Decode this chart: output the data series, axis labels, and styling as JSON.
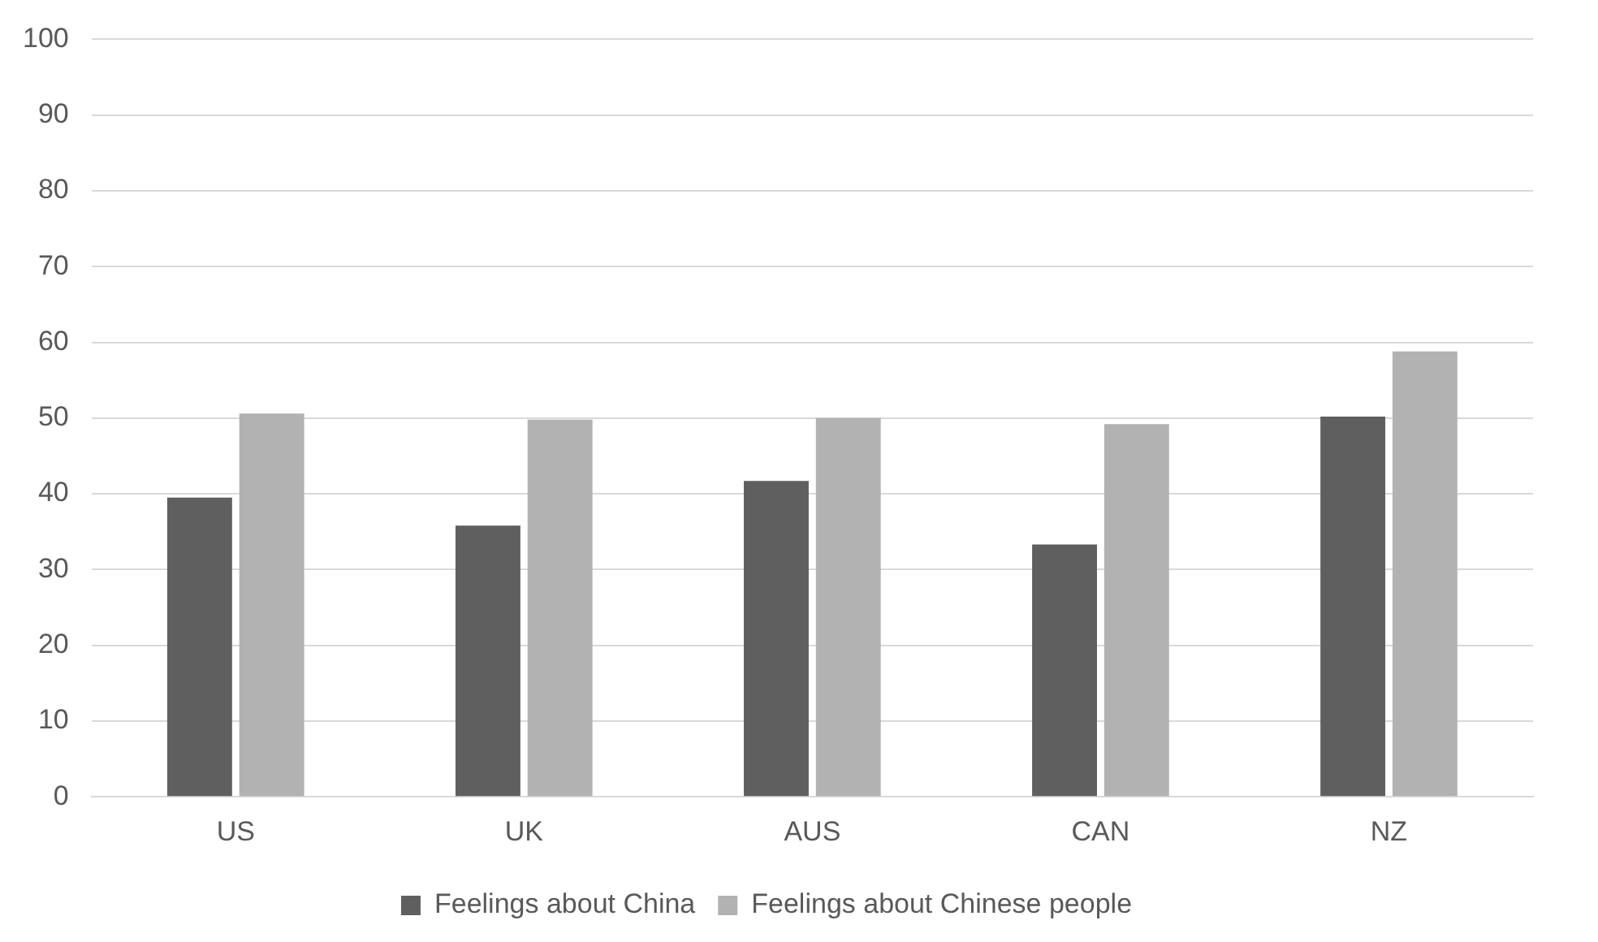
{
  "chart_data": {
    "type": "bar",
    "categories": [
      "US",
      "UK",
      "AUS",
      "CAN",
      "NZ"
    ],
    "series": [
      {
        "name": "Feelings about China",
        "color": "#5f5f5f",
        "values": [
          39.5,
          35.8,
          41.7,
          33.3,
          50.2
        ]
      },
      {
        "name": "Feelings about Chinese people",
        "color": "#b2b2b2",
        "values": [
          50.6,
          49.8,
          50.0,
          49.2,
          58.8
        ]
      }
    ],
    "ylim": [
      0,
      100
    ],
    "yticks": [
      0,
      10,
      20,
      30,
      40,
      50,
      60,
      70,
      80,
      90,
      100
    ],
    "grid": "y",
    "legend": "bottom"
  }
}
